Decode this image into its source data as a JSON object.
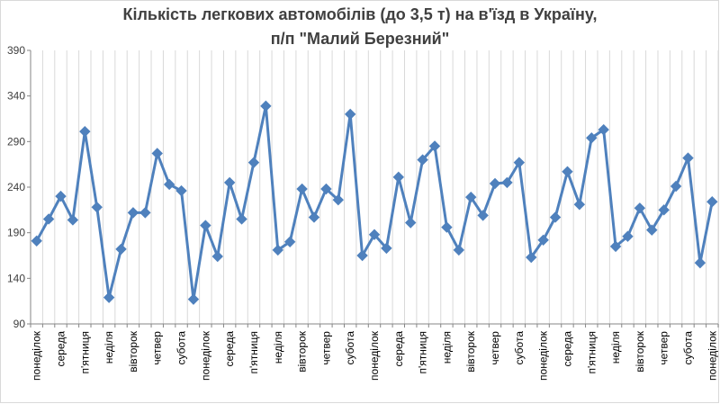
{
  "chart_data": {
    "type": "line",
    "title": [
      "Кількість легкових автомобілів (до 3,5 т) на в'їзд в Україну,",
      "п/п \"Малий Березний\""
    ],
    "xlabel": "",
    "ylabel": "",
    "ylim": [
      90,
      390
    ],
    "yticks": [
      90,
      140,
      190,
      240,
      290,
      340,
      390
    ],
    "grid": {
      "vertical": true,
      "horizontal": false
    },
    "legend": "none",
    "series_color": "#4f81bd",
    "marker": "diamond",
    "categories": [
      "понеділок",
      "вівторок",
      "середа",
      "четвер",
      "п'ятниця",
      "субота",
      "неділя",
      "понеділок",
      "вівторок",
      "середа",
      "четвер",
      "п'ятниця",
      "субота",
      "неділя",
      "понеділок",
      "вівторок",
      "середа",
      "четвер",
      "п'ятниця",
      "субота",
      "неділя",
      "понеділок",
      "вівторок",
      "середа",
      "четвер",
      "п'ятниця",
      "субота",
      "неділя",
      "понеділок",
      "вівторок",
      "середа",
      "четвер",
      "п'ятниця",
      "субота",
      "неділя",
      "понеділок",
      "вівторок",
      "середа",
      "четвер",
      "п'ятниця",
      "субота",
      "неділя",
      "понеділок",
      "вівторок",
      "середа",
      "четвер",
      "п'ятниця",
      "субота",
      "неділя",
      "понеділок",
      "вівторок",
      "середа",
      "четвер",
      "п'ятниця",
      "субота",
      "неділя",
      "понеділок"
    ],
    "shown_tick_labels": [
      "понеділок",
      "середа",
      "п'ятниця",
      "неділя",
      "вівторок",
      "четвер",
      "субота"
    ],
    "label_every": 2,
    "series": [
      {
        "name": "",
        "values": [
          181,
          205,
          230,
          204,
          301,
          218,
          119,
          172,
          212,
          212,
          277,
          243,
          236,
          117,
          198,
          164,
          245,
          205,
          267,
          329,
          171,
          180,
          238,
          207,
          238,
          226,
          320,
          165,
          188,
          173,
          251,
          201,
          270,
          285,
          196,
          171,
          229,
          209,
          244,
          245,
          267,
          163,
          182,
          207,
          257,
          221,
          294,
          303,
          175,
          186,
          217,
          193,
          215,
          241,
          272,
          157,
          224
        ]
      }
    ]
  }
}
